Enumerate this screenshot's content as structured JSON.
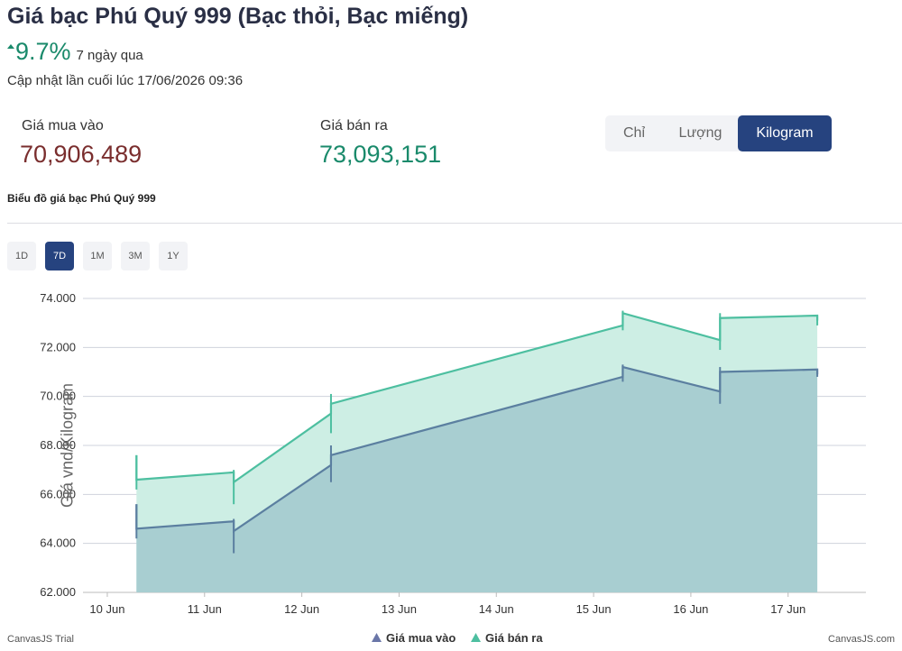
{
  "header": {
    "title": "Giá bạc Phú Quý 999 (Bạc thỏi, Bạc miếng)",
    "change_value": "9.7%",
    "change_period": "7 ngày qua",
    "updated": "Cập nhật lần cuối lúc 17/06/2026 09:36"
  },
  "prices": {
    "buy_label": "Giá mua vào",
    "buy_value": "70,906,489",
    "sell_label": "Giá bán ra",
    "sell_value": "73,093,151"
  },
  "unit_tabs": {
    "items": [
      "Chỉ",
      "Lượng",
      "Kilogram"
    ],
    "selected": "Kilogram"
  },
  "chart_caption": "Biểu đồ giá bạc Phú Quý 999",
  "range_tabs": {
    "items": [
      "1D",
      "7D",
      "1M",
      "3M",
      "1Y"
    ],
    "selected": "7D"
  },
  "credits": {
    "left": "CanvasJS Trial",
    "right": "CanvasJS.com"
  },
  "colors": {
    "buy_line": "#5b7fa0",
    "buy_fill": "#a5cbd0",
    "sell_line": "#4dbfa0",
    "sell_fill": "#cdeee4",
    "grid": "#cfd3dc",
    "accent": "#26437f"
  },
  "chart_data": {
    "type": "area",
    "ylabel": "Giá vnd/Kilogram",
    "ylim": [
      62000,
      74000
    ],
    "yticks": [
      62000,
      64000,
      66000,
      68000,
      70000,
      72000,
      74000
    ],
    "ytick_labels": [
      "62.000",
      "64.000",
      "66.000",
      "68.000",
      "70.000",
      "72.000",
      "74.000"
    ],
    "xticks": [
      "10 Jun",
      "11 Jun",
      "12 Jun",
      "13 Jun",
      "14 Jun",
      "15 Jun",
      "16 Jun",
      "17 Jun"
    ],
    "legend_position": "bottom-center",
    "series": [
      {
        "name": "Giá mua vào",
        "points": [
          {
            "x": 10.3,
            "open": 65600,
            "close": 64600,
            "low": 64200,
            "high": 65600
          },
          {
            "x": 11.3,
            "open": 64900,
            "close": 64500,
            "low": 63600,
            "high": 65000
          },
          {
            "x": 12.3,
            "open": 67200,
            "close": 67600,
            "low": 66500,
            "high": 68000
          },
          {
            "x": 15.3,
            "open": 70800,
            "close": 71200,
            "low": 70600,
            "high": 71300
          },
          {
            "x": 16.3,
            "open": 70200,
            "close": 71000,
            "low": 69700,
            "high": 71200
          },
          {
            "x": 17.3,
            "open": 71100,
            "close": 70900,
            "low": 70800,
            "high": 71100
          }
        ]
      },
      {
        "name": "Giá bán ra",
        "points": [
          {
            "x": 10.3,
            "open": 67600,
            "close": 66600,
            "low": 66200,
            "high": 67600
          },
          {
            "x": 11.3,
            "open": 66900,
            "close": 66500,
            "low": 65600,
            "high": 67000
          },
          {
            "x": 12.3,
            "open": 69300,
            "close": 69700,
            "low": 68500,
            "high": 70100
          },
          {
            "x": 15.3,
            "open": 72900,
            "close": 73400,
            "low": 72700,
            "high": 73500
          },
          {
            "x": 16.3,
            "open": 72300,
            "close": 73200,
            "low": 71900,
            "high": 73400
          },
          {
            "x": 17.3,
            "open": 73300,
            "close": 73100,
            "low": 72900,
            "high": 73300
          }
        ]
      }
    ]
  }
}
